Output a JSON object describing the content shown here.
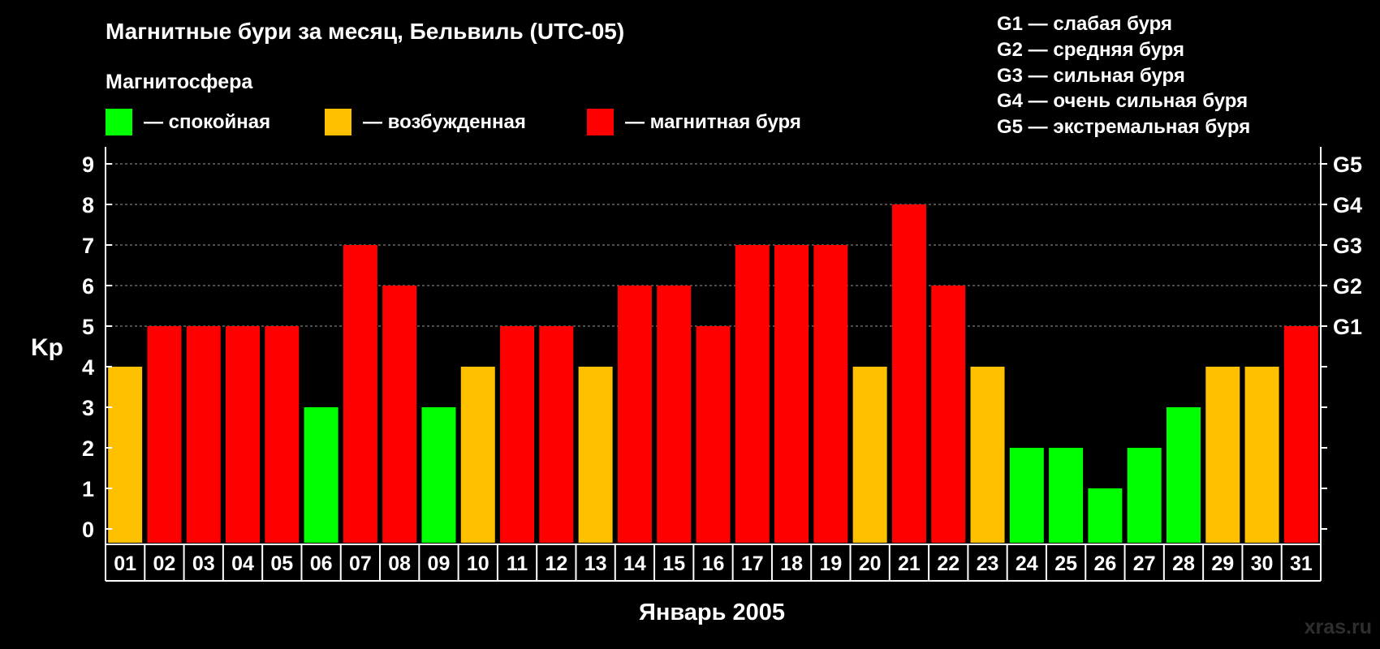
{
  "colors": {
    "background": "#000000",
    "quiet": "#00ff00",
    "excited": "#ffc000",
    "storm": "#ff0000",
    "text": "#ffffff",
    "grid": "#9a9a9a"
  },
  "header": {
    "title": "Магнитные бури за месяц, Бельвиль (UTC-05)",
    "legend_title": "Магнитосфера",
    "legend": [
      {
        "label": "— спокойная",
        "color": "#00ff00"
      },
      {
        "label": "— возбужденная",
        "color": "#ffc000"
      },
      {
        "label": "— магнитная буря",
        "color": "#ff0000"
      }
    ],
    "storm_levels": [
      "G1 — слабая буря",
      "G2 — средняя буря",
      "G3 — сильная буря",
      "G4 — очень сильная буря",
      "G5 — экстремальная буря"
    ]
  },
  "watermark": "xras.ru",
  "chart_data": {
    "type": "bar",
    "xlabel": "Январь 2005",
    "ylabel": "Kp",
    "ylim": [
      0,
      9
    ],
    "yticks": [
      0,
      1,
      2,
      3,
      4,
      5,
      6,
      7,
      8,
      9
    ],
    "right_axis": [
      {
        "kp": 5,
        "label": "G1"
      },
      {
        "kp": 6,
        "label": "G2"
      },
      {
        "kp": 7,
        "label": "G3"
      },
      {
        "kp": 8,
        "label": "G4"
      },
      {
        "kp": 9,
        "label": "G5"
      }
    ],
    "grid": "horizontal dashed at Kp 5–9",
    "categories": [
      "01",
      "02",
      "03",
      "04",
      "05",
      "06",
      "07",
      "08",
      "09",
      "10",
      "11",
      "12",
      "13",
      "14",
      "15",
      "16",
      "17",
      "18",
      "19",
      "20",
      "21",
      "22",
      "23",
      "24",
      "25",
      "26",
      "27",
      "28",
      "29",
      "30",
      "31"
    ],
    "values": [
      4,
      5,
      5,
      5,
      5,
      3,
      7,
      6,
      3,
      4,
      5,
      5,
      4,
      6,
      6,
      5,
      7,
      7,
      7,
      4,
      8,
      6,
      4,
      2,
      2,
      1,
      2,
      3,
      4,
      4,
      5
    ]
  }
}
